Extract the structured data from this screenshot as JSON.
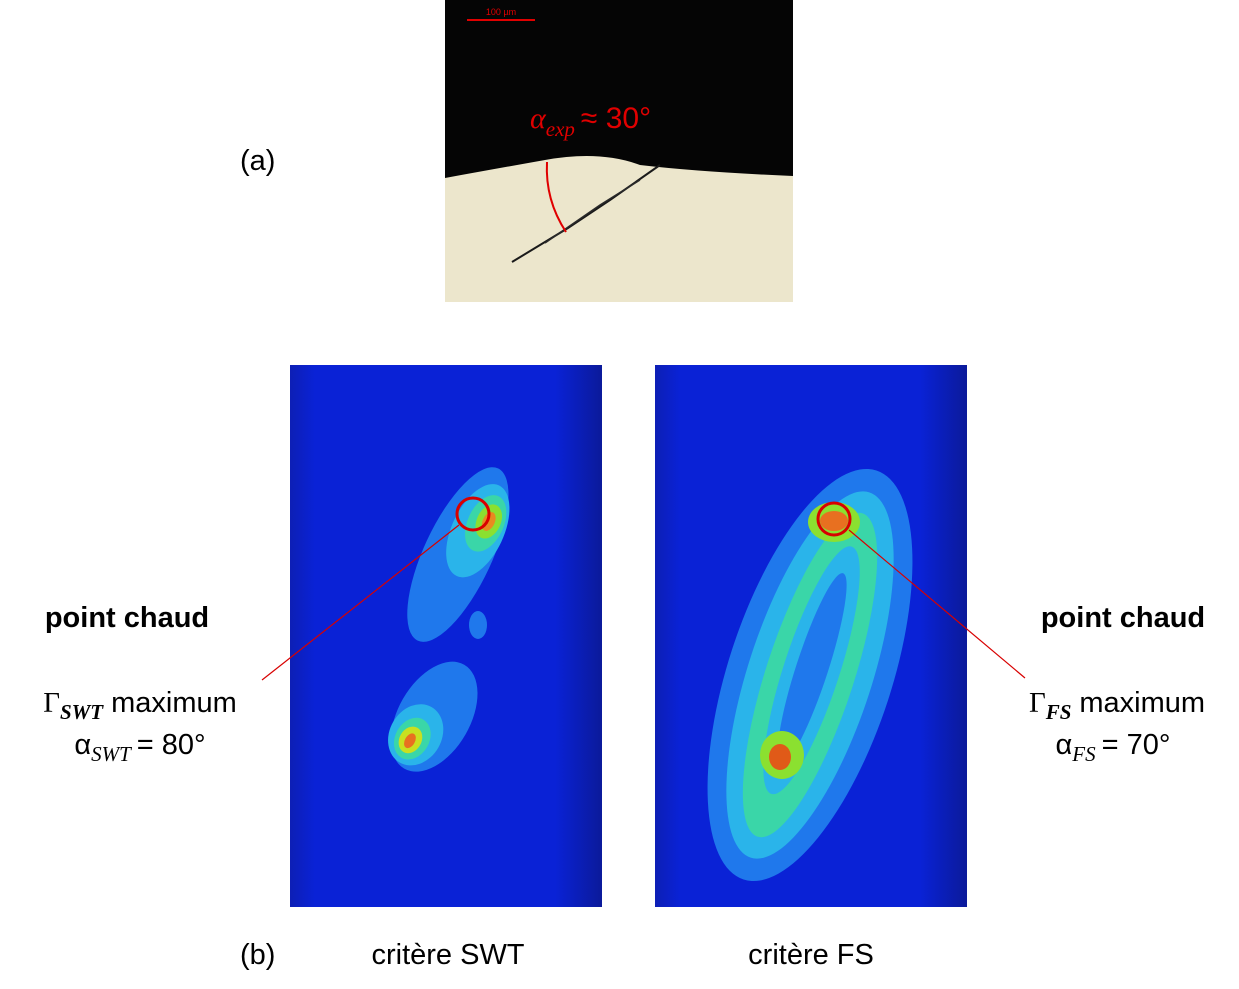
{
  "panel_a": {
    "label": "(a)",
    "scale_bar": "100 µm",
    "angle": {
      "symbol": "α",
      "subscript": "exp",
      "text": "≈ 30°"
    }
  },
  "panel_b": {
    "label": "(b)",
    "maps": [
      {
        "caption": "critère SWT",
        "hotspot": {
          "title": "point chaud",
          "gamma_symbol": "Γ",
          "gamma_subscript": "SWT",
          "gamma_text": "maximum",
          "alpha_symbol": "α",
          "alpha_subscript": "SWT",
          "alpha_text": "= 80°"
        }
      },
      {
        "caption": "critère FS",
        "hotspot": {
          "title": "point chaud",
          "gamma_symbol": "Γ",
          "gamma_subscript": "FS",
          "gamma_text": "maximum",
          "alpha_symbol": "α",
          "alpha_subscript": "FS",
          "alpha_text": "= 70°"
        }
      }
    ]
  }
}
